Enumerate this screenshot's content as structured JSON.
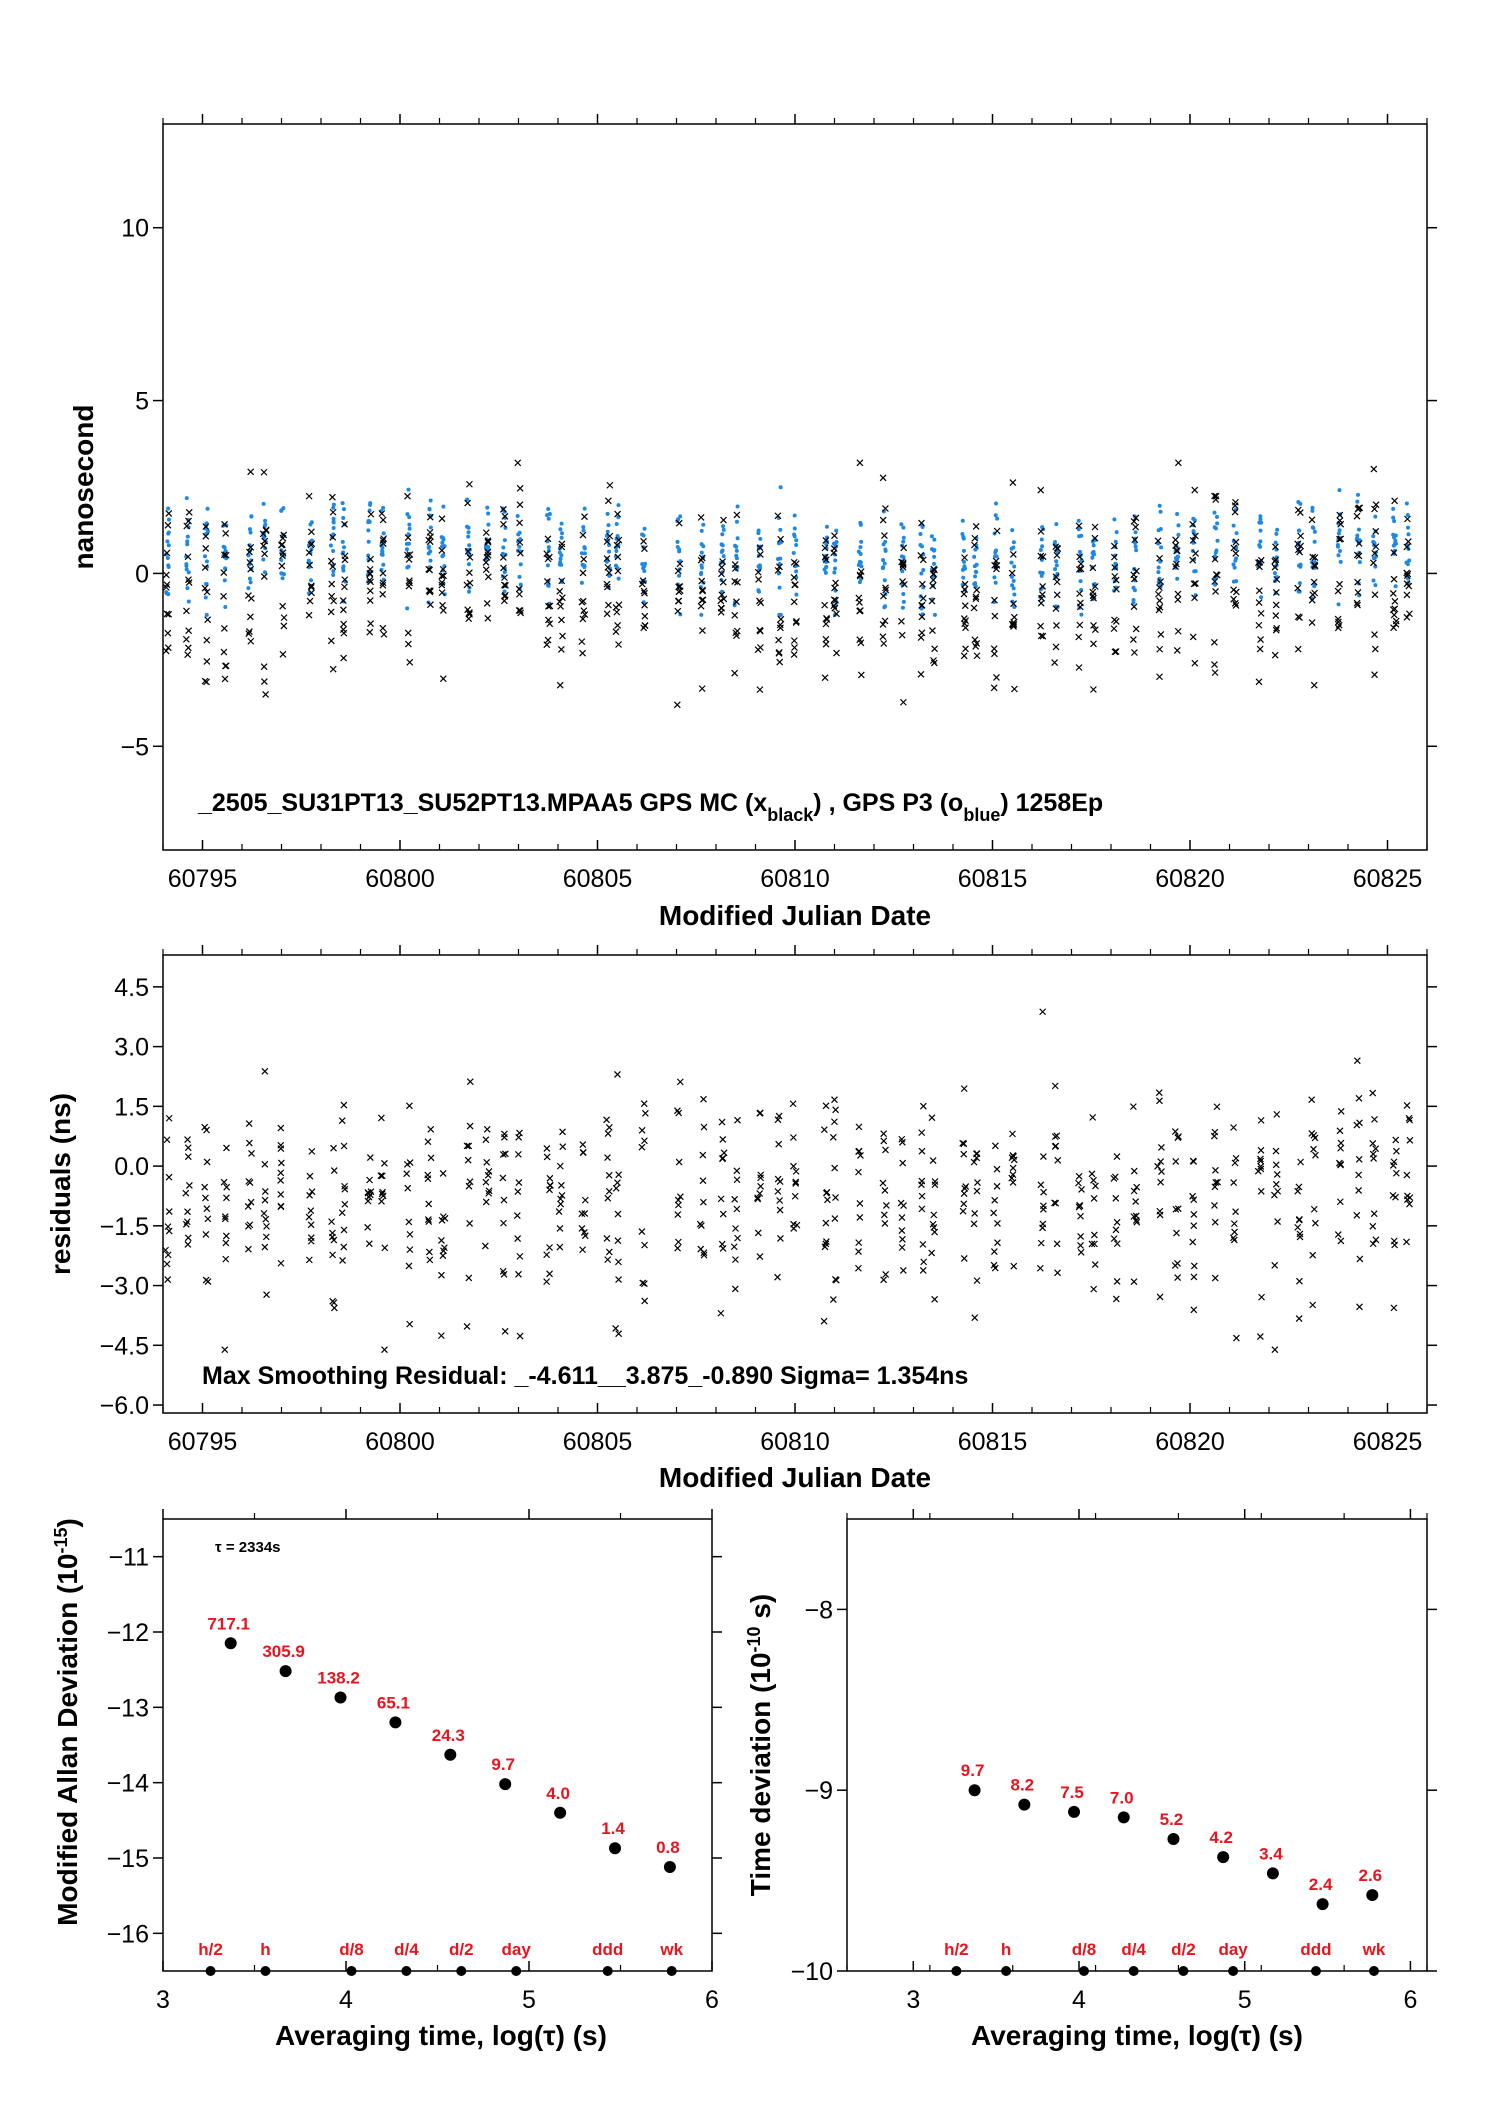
{
  "colors": {
    "black": "#000000",
    "blue": "#1e88e5",
    "red": "#e8141e",
    "frame": "#000000"
  },
  "chart_data": [
    {
      "type": "scatter",
      "id": "top",
      "ylabel": "nanosecond",
      "xlabel": "Modified Julian Date",
      "xlim": [
        60794,
        60826
      ],
      "ylim": [
        -8,
        13
      ],
      "xticks": [
        "60795",
        "60800",
        "60805",
        "60810",
        "60815",
        "60820",
        "60825"
      ],
      "xtick_values": [
        60795,
        60800,
        60805,
        60810,
        60815,
        60820,
        60825
      ],
      "yticks": [
        "−5",
        "0",
        "5",
        "10"
      ],
      "ytick_values": [
        -5,
        0,
        5,
        10
      ],
      "annotation_prefix": "_2505_SU31PT13_SU52PT13.MPAA5    GPS MC (x",
      "annotation_sub1": "black",
      "annotation_mid": ") ,  GPS P3 (o",
      "annotation_sub2": "blue",
      "annotation_suffix": ")  1258Ep",
      "series": [
        {
          "name": "GPS MC",
          "marker": "x",
          "color": "#000000",
          "mean": -0.4,
          "spread": 1.35,
          "min": -3.8,
          "max": 3.2
        },
        {
          "name": "GPS P3",
          "marker": "o",
          "color": "#1e88e5",
          "mean": 0.55,
          "spread": 0.7,
          "min": -1.2,
          "max": 3.2
        }
      ],
      "epochs": 1258
    },
    {
      "type": "scatter",
      "id": "residuals",
      "ylabel": "residuals (ns)",
      "xlabel": "Modified Julian Date",
      "xlim": [
        60794,
        60826
      ],
      "ylim": [
        -6.2,
        5.3
      ],
      "xticks": [
        "60795",
        "60800",
        "60805",
        "60810",
        "60815",
        "60820",
        "60825"
      ],
      "xtick_values": [
        60795,
        60800,
        60805,
        60810,
        60815,
        60820,
        60825
      ],
      "yticks": [
        "−6.0",
        "−4.5",
        "−3.0",
        "−1.5",
        "0.0",
        "1.5",
        "3.0",
        "4.5"
      ],
      "ytick_values": [
        -6.0,
        -4.5,
        -3.0,
        -1.5,
        0.0,
        1.5,
        3.0,
        4.5
      ],
      "annotation": "Max Smoothing Residual: _-4.611__3.875_-0.890  Sigma= 1.354ns",
      "series": [
        {
          "name": "residuals",
          "marker": "x",
          "color": "#000000",
          "mean": -0.89,
          "spread": 1.354,
          "min": -4.611,
          "max": 3.875
        }
      ]
    },
    {
      "type": "scatter",
      "id": "mdev",
      "ylabel": "Modified Allan Deviation (10",
      "ylabel_sup": "-15",
      "ylabel_end": ")",
      "xlabel": "Averaging time, log(τ) (s)",
      "xlim": [
        3,
        6
      ],
      "ylim": [
        -16.5,
        -10.5
      ],
      "xticks": [
        "3",
        "4",
        "5",
        "6"
      ],
      "xtick_values": [
        3,
        4,
        5,
        6
      ],
      "yticks": [
        "−16",
        "−15",
        "−14",
        "−13",
        "−12",
        "−11"
      ],
      "ytick_values": [
        -16,
        -15,
        -14,
        -13,
        -12,
        -11
      ],
      "note": "τ = 2334s",
      "x": [
        3.37,
        3.67,
        3.97,
        4.27,
        4.57,
        4.87,
        5.17,
        5.47,
        5.77
      ],
      "y": [
        -12.15,
        -12.52,
        -12.87,
        -13.2,
        -13.63,
        -14.02,
        -14.4,
        -14.87,
        -15.12
      ],
      "labels": [
        "717.1",
        "305.9",
        "138.2",
        "65.1",
        "24.3",
        "9.7",
        "4.0",
        "1.4",
        "0.8"
      ],
      "markers_x": [
        3.26,
        3.56,
        4.03,
        4.33,
        4.63,
        4.93,
        5.43,
        5.78
      ],
      "markers": [
        "h/2",
        "h",
        "d/8",
        "d/4",
        "d/2",
        "day",
        "ddd",
        "wk"
      ]
    },
    {
      "type": "scatter",
      "id": "tdev",
      "ylabel": "Time deviation (10",
      "ylabel_sup": "-10",
      "ylabel_end": " s)",
      "xlabel": "Averaging time, log(τ) (s)",
      "xlim": [
        2.6,
        6.1
      ],
      "ylim": [
        -10,
        -7.5
      ],
      "xticks": [
        "3",
        "4",
        "5",
        "6"
      ],
      "xtick_values": [
        3,
        4,
        5,
        6
      ],
      "yticks": [
        "−10",
        "−9",
        "−8"
      ],
      "ytick_values": [
        -10,
        -9,
        -8
      ],
      "x": [
        3.37,
        3.67,
        3.97,
        4.27,
        4.57,
        4.87,
        5.17,
        5.47,
        5.77
      ],
      "y": [
        -9.0,
        -9.08,
        -9.12,
        -9.15,
        -9.27,
        -9.37,
        -9.46,
        -9.63,
        -9.58
      ],
      "labels": [
        "9.7",
        "8.2",
        "7.5",
        "7.0",
        "5.2",
        "4.2",
        "3.4",
        "2.4",
        "2.6"
      ],
      "markers_x": [
        3.26,
        3.56,
        4.03,
        4.33,
        4.63,
        4.93,
        5.43,
        5.78
      ],
      "markers": [
        "h/2",
        "h",
        "d/8",
        "d/4",
        "d/2",
        "day",
        "ddd",
        "wk"
      ]
    }
  ]
}
